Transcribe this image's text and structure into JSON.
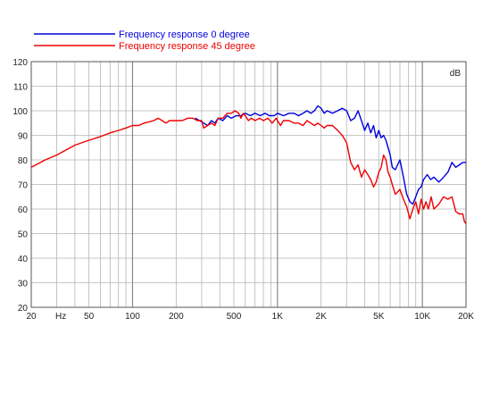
{
  "chart_data": {
    "type": "line",
    "title": "",
    "xlabel": "Hz",
    "ylabel": "dB",
    "x_scale": "log",
    "xlim": [
      20,
      20000
    ],
    "ylim": [
      20,
      120
    ],
    "grid": true,
    "legend_position": "top-left",
    "x_tick_labels": [
      {
        "value": 20,
        "label": "20"
      },
      {
        "value": 50,
        "label": "50"
      },
      {
        "value": 100,
        "label": "100"
      },
      {
        "value": 200,
        "label": "200"
      },
      {
        "value": 500,
        "label": "500"
      },
      {
        "value": 1000,
        "label": "1K"
      },
      {
        "value": 2000,
        "label": "2K"
      },
      {
        "value": 5000,
        "label": "5K"
      },
      {
        "value": 10000,
        "label": "10K"
      },
      {
        "value": 20000,
        "label": "20K"
      }
    ],
    "x_unit_label": {
      "value": 32,
      "label": "Hz"
    },
    "y_ticks": [
      20,
      30,
      40,
      50,
      60,
      70,
      80,
      90,
      100,
      110,
      120
    ],
    "series": [
      {
        "name": "Frequency response 0 degree",
        "color": "#0000dd",
        "points": [
          [
            270,
            97
          ],
          [
            290,
            96
          ],
          [
            310,
            95
          ],
          [
            330,
            94
          ],
          [
            350,
            96
          ],
          [
            370,
            95
          ],
          [
            390,
            97
          ],
          [
            420,
            96
          ],
          [
            450,
            98
          ],
          [
            480,
            97
          ],
          [
            520,
            98
          ],
          [
            560,
            98
          ],
          [
            600,
            99
          ],
          [
            650,
            98
          ],
          [
            700,
            99
          ],
          [
            760,
            98
          ],
          [
            820,
            99
          ],
          [
            880,
            98
          ],
          [
            950,
            98
          ],
          [
            1000,
            99
          ],
          [
            1100,
            98
          ],
          [
            1200,
            99
          ],
          [
            1300,
            99
          ],
          [
            1400,
            98
          ],
          [
            1500,
            99
          ],
          [
            1600,
            100
          ],
          [
            1700,
            99
          ],
          [
            1800,
            100
          ],
          [
            1900,
            102
          ],
          [
            2000,
            101
          ],
          [
            2100,
            99
          ],
          [
            2200,
            100
          ],
          [
            2400,
            99
          ],
          [
            2600,
            100
          ],
          [
            2800,
            101
          ],
          [
            3000,
            100
          ],
          [
            3100,
            98
          ],
          [
            3200,
            96
          ],
          [
            3400,
            97
          ],
          [
            3600,
            100
          ],
          [
            3800,
            96
          ],
          [
            4000,
            92
          ],
          [
            4200,
            95
          ],
          [
            4400,
            91
          ],
          [
            4600,
            94
          ],
          [
            4800,
            89
          ],
          [
            5000,
            92
          ],
          [
            5200,
            89
          ],
          [
            5400,
            90
          ],
          [
            5600,
            88
          ],
          [
            6000,
            82
          ],
          [
            6200,
            77
          ],
          [
            6500,
            76
          ],
          [
            7000,
            80
          ],
          [
            7400,
            73
          ],
          [
            7800,
            66
          ],
          [
            8200,
            63
          ],
          [
            8600,
            62
          ],
          [
            9000,
            65
          ],
          [
            9400,
            68
          ],
          [
            9800,
            69
          ],
          [
            10200,
            72
          ],
          [
            10800,
            74
          ],
          [
            11400,
            72
          ],
          [
            12000,
            73
          ],
          [
            13000,
            71
          ],
          [
            14000,
            73
          ],
          [
            15000,
            75
          ],
          [
            16000,
            79
          ],
          [
            17000,
            77
          ],
          [
            18000,
            78
          ],
          [
            19000,
            79
          ],
          [
            20000,
            79
          ]
        ]
      },
      {
        "name": "Frequency response 45 degree",
        "color": "#ee0000",
        "points": [
          [
            20,
            77
          ],
          [
            25,
            80
          ],
          [
            30,
            82
          ],
          [
            40,
            86
          ],
          [
            50,
            88
          ],
          [
            60,
            89.5
          ],
          [
            70,
            91
          ],
          [
            80,
            92
          ],
          [
            90,
            93
          ],
          [
            100,
            94
          ],
          [
            110,
            94
          ],
          [
            120,
            95
          ],
          [
            130,
            95.5
          ],
          [
            140,
            96
          ],
          [
            150,
            97
          ],
          [
            160,
            96
          ],
          [
            170,
            95
          ],
          [
            180,
            96
          ],
          [
            190,
            96
          ],
          [
            200,
            96
          ],
          [
            220,
            96
          ],
          [
            240,
            97
          ],
          [
            260,
            97
          ],
          [
            280,
            96
          ],
          [
            300,
            96
          ],
          [
            310,
            93
          ],
          [
            330,
            94
          ],
          [
            350,
            95
          ],
          [
            370,
            94
          ],
          [
            390,
            97
          ],
          [
            420,
            97
          ],
          [
            450,
            99
          ],
          [
            480,
            99
          ],
          [
            510,
            100
          ],
          [
            540,
            99
          ],
          [
            560,
            97
          ],
          [
            580,
            99
          ],
          [
            600,
            98
          ],
          [
            630,
            96
          ],
          [
            660,
            97
          ],
          [
            700,
            96
          ],
          [
            750,
            97
          ],
          [
            800,
            96
          ],
          [
            860,
            97
          ],
          [
            920,
            95
          ],
          [
            980,
            97
          ],
          [
            1000,
            96
          ],
          [
            1050,
            94
          ],
          [
            1100,
            96
          ],
          [
            1200,
            96
          ],
          [
            1300,
            95
          ],
          [
            1400,
            95
          ],
          [
            1500,
            94
          ],
          [
            1600,
            96
          ],
          [
            1700,
            95
          ],
          [
            1800,
            94
          ],
          [
            1900,
            95
          ],
          [
            2000,
            94
          ],
          [
            2100,
            93
          ],
          [
            2200,
            94
          ],
          [
            2400,
            94
          ],
          [
            2600,
            92
          ],
          [
            2800,
            90
          ],
          [
            3000,
            87
          ],
          [
            3200,
            79
          ],
          [
            3400,
            76
          ],
          [
            3600,
            78
          ],
          [
            3800,
            73
          ],
          [
            4000,
            76
          ],
          [
            4200,
            74
          ],
          [
            4400,
            72
          ],
          [
            4600,
            69
          ],
          [
            4800,
            71
          ],
          [
            5000,
            75
          ],
          [
            5200,
            77
          ],
          [
            5400,
            82
          ],
          [
            5600,
            80
          ],
          [
            5800,
            75
          ],
          [
            6000,
            73
          ],
          [
            6200,
            70
          ],
          [
            6500,
            66
          ],
          [
            7000,
            68
          ],
          [
            7400,
            64
          ],
          [
            7800,
            61
          ],
          [
            8200,
            56
          ],
          [
            8600,
            60
          ],
          [
            9000,
            63
          ],
          [
            9400,
            58
          ],
          [
            9800,
            64
          ],
          [
            10200,
            60
          ],
          [
            10600,
            63
          ],
          [
            11000,
            60
          ],
          [
            11500,
            65
          ],
          [
            12000,
            60
          ],
          [
            13000,
            62
          ],
          [
            14000,
            65
          ],
          [
            15000,
            64
          ],
          [
            16000,
            65
          ],
          [
            17000,
            59
          ],
          [
            18000,
            58
          ],
          [
            19000,
            58
          ],
          [
            19500,
            55
          ],
          [
            20000,
            54
          ]
        ]
      }
    ]
  }
}
